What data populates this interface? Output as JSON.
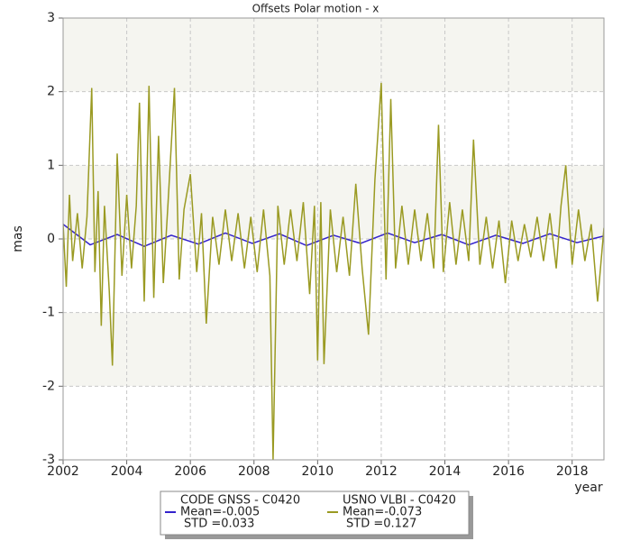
{
  "chart_data": {
    "type": "line",
    "title": "Offsets Polar motion - x",
    "x_label": "year",
    "y_label": "mas",
    "xlim": [
      2002,
      2019
    ],
    "xticks": [
      2002,
      2004,
      2006,
      2008,
      2010,
      2012,
      2014,
      2016,
      2018
    ],
    "ylim": [
      -3,
      3
    ],
    "yticks": [
      3,
      2,
      1,
      0,
      -1,
      -2,
      -3
    ],
    "grid": true,
    "legend": "bottom",
    "series": [
      {
        "name": "CODE GNSS - C0420",
        "color": "#3322cc",
        "stats": [
          "Mean=-0.005",
          "STD =0.033"
        ],
        "x": [
          2002.0,
          2002.85,
          2003.7,
          2004.55,
          2005.4,
          2006.25,
          2007.1,
          2007.95,
          2008.8,
          2009.65,
          2010.5,
          2011.35,
          2012.2,
          2013.05,
          2013.9,
          2014.75,
          2015.6,
          2016.45,
          2017.3,
          2018.15,
          2019.0
        ],
        "values": [
          0.2,
          -0.08,
          0.06,
          -0.1,
          0.05,
          -0.07,
          0.08,
          -0.06,
          0.07,
          -0.09,
          0.05,
          -0.06,
          0.08,
          -0.05,
          0.06,
          -0.08,
          0.05,
          -0.06,
          0.07,
          -0.05,
          0.04
        ]
      },
      {
        "name": "USNO VLBI - C0420",
        "color": "#9a9a22",
        "stats": [
          "Mean=-0.073",
          "STD =0.127"
        ],
        "x": [
          2002.0,
          2002.1,
          2002.2,
          2002.3,
          2002.45,
          2002.6,
          2002.75,
          2002.9,
          2003.0,
          2003.1,
          2003.2,
          2003.3,
          2003.45,
          2003.55,
          2003.7,
          2003.85,
          2004.0,
          2004.15,
          2004.3,
          2004.4,
          2004.55,
          2004.7,
          2004.85,
          2005.0,
          2005.15,
          2005.3,
          2005.5,
          2005.65,
          2005.8,
          2006.0,
          2006.2,
          2006.35,
          2006.5,
          2006.7,
          2006.9,
          2007.1,
          2007.3,
          2007.5,
          2007.7,
          2007.9,
          2008.1,
          2008.3,
          2008.5,
          2008.6,
          2008.75,
          2008.95,
          2009.15,
          2009.35,
          2009.55,
          2009.75,
          2009.9,
          2010.0,
          2010.1,
          2010.2,
          2010.4,
          2010.6,
          2010.8,
          2011.0,
          2011.2,
          2011.4,
          2011.6,
          2011.8,
          2012.0,
          2012.15,
          2012.3,
          2012.45,
          2012.65,
          2012.85,
          2013.05,
          2013.25,
          2013.45,
          2013.65,
          2013.8,
          2013.95,
          2014.15,
          2014.35,
          2014.55,
          2014.75,
          2014.9,
          2015.1,
          2015.3,
          2015.5,
          2015.7,
          2015.9,
          2016.1,
          2016.3,
          2016.5,
          2016.7,
          2016.9,
          2017.1,
          2017.3,
          2017.5,
          2017.65,
          2017.8,
          2018.0,
          2018.2,
          2018.4,
          2018.6,
          2018.8,
          2019.0
        ],
        "values": [
          0.2,
          -0.65,
          0.6,
          -0.3,
          0.35,
          -0.4,
          0.3,
          2.05,
          -0.45,
          0.65,
          -1.18,
          0.45,
          -0.7,
          -1.72,
          1.16,
          -0.5,
          0.6,
          -0.4,
          0.45,
          1.85,
          -0.85,
          2.08,
          -0.8,
          1.4,
          -0.6,
          0.5,
          2.05,
          -0.55,
          0.4,
          0.88,
          -0.45,
          0.35,
          -1.15,
          0.3,
          -0.35,
          0.4,
          -0.3,
          0.35,
          -0.4,
          0.3,
          -0.45,
          0.4,
          -0.5,
          -3.0,
          0.45,
          -0.35,
          0.4,
          -0.3,
          0.5,
          -0.75,
          0.45,
          -1.65,
          0.5,
          -1.7,
          0.4,
          -0.45,
          0.3,
          -0.5,
          0.75,
          -0.4,
          -1.3,
          0.8,
          2.12,
          -0.55,
          1.9,
          -0.4,
          0.45,
          -0.35,
          0.4,
          -0.3,
          0.35,
          -0.4,
          1.55,
          -0.45,
          0.5,
          -0.35,
          0.4,
          -0.3,
          1.35,
          -0.35,
          0.3,
          -0.4,
          0.25,
          -0.6,
          0.25,
          -0.3,
          0.2,
          -0.25,
          0.3,
          -0.3,
          0.35,
          -0.4,
          0.45,
          1.0,
          -0.35,
          0.4,
          -0.3,
          0.2,
          -0.85,
          0.15
        ]
      }
    ]
  }
}
